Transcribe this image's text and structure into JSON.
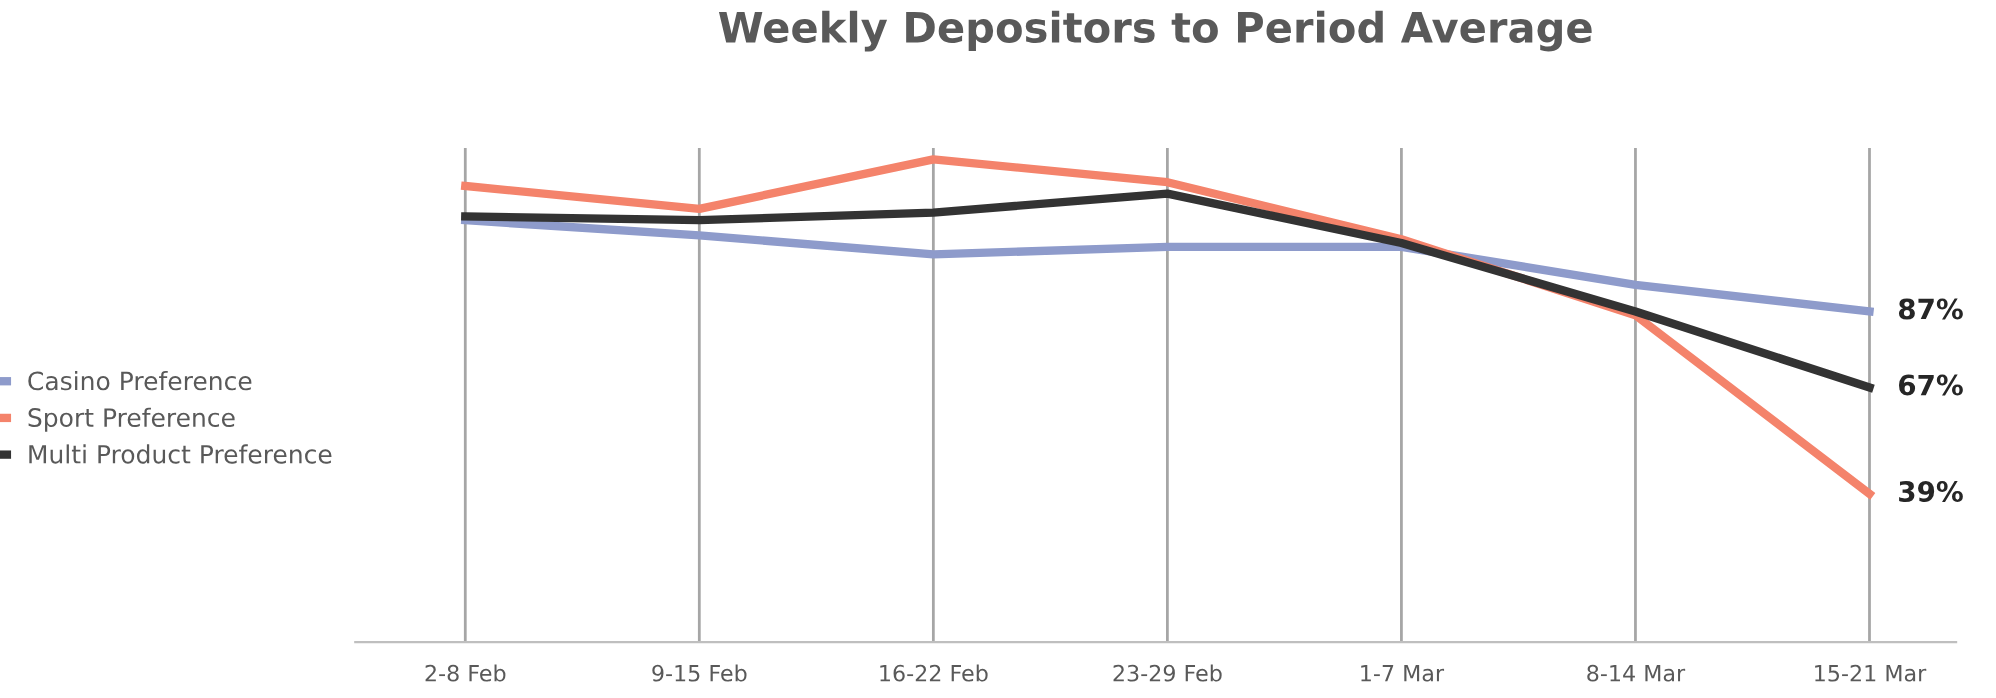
{
  "chart_data": {
    "type": "line",
    "title": "Weekly Depositors to Period Average",
    "categories": [
      "2-8 Feb",
      "9-15 Feb",
      "16-22 Feb",
      "23-29 Feb",
      "1-7 Mar",
      "8-14 Mar",
      "15-21 Mar"
    ],
    "series": [
      {
        "name": "Casino Preference",
        "color": "#8e9bcb",
        "values": [
          111,
          107,
          102,
          104,
          104,
          94,
          87
        ],
        "value_labels": [
          null,
          null,
          null,
          null,
          null,
          null,
          "87%"
        ]
      },
      {
        "name": "Sport Preference",
        "color": "#f4836b",
        "values": [
          120,
          114,
          127,
          121,
          106,
          86,
          39
        ],
        "value_labels": [
          null,
          null,
          null,
          null,
          null,
          null,
          "39%"
        ]
      },
      {
        "name": "Multi Product Preference",
        "color": "#333333",
        "values": [
          112,
          111,
          113,
          118,
          105,
          87,
          67
        ],
        "value_labels": [
          null,
          null,
          null,
          null,
          null,
          null,
          "67%"
        ]
      }
    ],
    "ylim": [
      0,
      130
    ],
    "tick_labels": "x",
    "grid": "x",
    "legend": "left",
    "marker": "none",
    "line_style": "solid"
  }
}
